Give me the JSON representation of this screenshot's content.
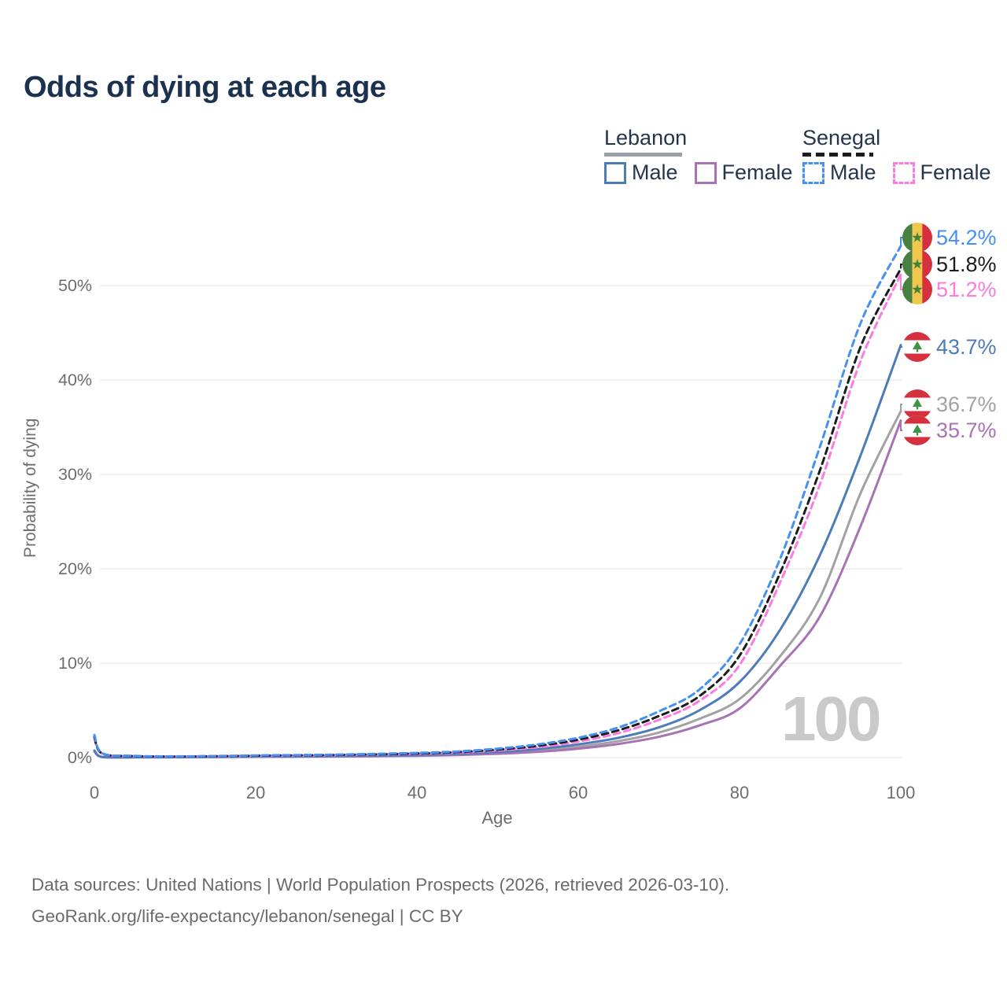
{
  "header": {
    "title": "Odds of dying at each age"
  },
  "legend": {
    "groups": [
      {
        "label": "Lebanon",
        "line_style": "solid",
        "items": [
          {
            "label": "Male"
          },
          {
            "label": "Female"
          }
        ]
      },
      {
        "label": "Senegal",
        "line_style": "dashed",
        "items": [
          {
            "label": "Male"
          },
          {
            "label": "Female"
          }
        ]
      }
    ]
  },
  "colors": {
    "senegal_male": "#4690f2",
    "senegal_both": "#1c1c1c",
    "senegal_female": "#fb7be0",
    "lebanon_male": "#4d7cba",
    "lebanon_both": "#a2a2a2",
    "lebanon_female": "#a873b4",
    "grid": "#ebebeb",
    "title": "#1b3150",
    "axis_text": "#6e6e6e",
    "watermark": "#c9c9c9",
    "flag_senegal_green": "#47803f",
    "flag_senegal_yellow": "#f0c84b",
    "flag_senegal_red": "#d5303e",
    "flag_lebanon_red": "#d5303e",
    "flag_lebanon_cedar": "#3f9444"
  },
  "chart_data": {
    "type": "line",
    "title": "Odds of dying at each age",
    "xlabel": "Age",
    "ylabel": "Probability of dying",
    "xlim": [
      0,
      100
    ],
    "ylim_percent": [
      0,
      57
    ],
    "grid": "horizontal-only",
    "legend_position": "top-right",
    "x_ticks": [
      0,
      20,
      40,
      60,
      80,
      100
    ],
    "x_tick_labels": [
      "0",
      "20",
      "40",
      "60",
      "80",
      "100"
    ],
    "y_ticks_percent": [
      0,
      10,
      20,
      30,
      40,
      50
    ],
    "y_tick_labels": [
      "0%",
      "10%",
      "20%",
      "30%",
      "40%",
      "50%"
    ],
    "hover_age_indicator": "100",
    "ages": [
      0,
      1,
      5,
      10,
      15,
      20,
      25,
      30,
      35,
      40,
      45,
      50,
      55,
      60,
      65,
      70,
      75,
      80,
      85,
      90,
      95,
      100
    ],
    "series": [
      {
        "key": "lebanon_both",
        "name": "Lebanon Both sexes",
        "style": "solid",
        "color": "#a2a2a2",
        "values_percent": [
          0.7,
          0.055,
          0.035,
          0.04,
          0.07,
          0.1,
          0.12,
          0.14,
          0.17,
          0.23,
          0.33,
          0.5,
          0.76,
          1.15,
          1.75,
          2.65,
          4.1,
          6.2,
          10.7,
          17.0,
          28.0,
          36.7
        ]
      },
      {
        "key": "lebanon_female",
        "name": "Lebanon Female",
        "style": "solid",
        "color": "#a873b4",
        "values_percent": [
          0.65,
          0.05,
          0.03,
          0.035,
          0.06,
          0.08,
          0.1,
          0.12,
          0.15,
          0.19,
          0.27,
          0.41,
          0.62,
          0.95,
          1.45,
          2.2,
          3.4,
          5.2,
          9.7,
          15.0,
          24.5,
          35.7
        ]
      },
      {
        "key": "lebanon_male",
        "name": "Lebanon Male",
        "style": "solid",
        "color": "#4d7cba",
        "values_percent": [
          0.75,
          0.06,
          0.04,
          0.05,
          0.08,
          0.12,
          0.14,
          0.17,
          0.21,
          0.28,
          0.4,
          0.6,
          0.92,
          1.4,
          2.1,
          3.2,
          5.0,
          8.0,
          13.5,
          21.5,
          32.0,
          43.7
        ]
      },
      {
        "key": "senegal_female",
        "name": "Senegal Female",
        "style": "dashed",
        "color": "#fb7be0",
        "values_percent": [
          2.0,
          0.38,
          0.15,
          0.11,
          0.13,
          0.17,
          0.21,
          0.25,
          0.31,
          0.39,
          0.52,
          0.75,
          1.1,
          1.7,
          2.6,
          4.0,
          6.0,
          9.8,
          18.5,
          29.0,
          42.0,
          51.2
        ]
      },
      {
        "key": "senegal_both",
        "name": "Senegal Both sexes",
        "style": "dashed",
        "color": "#1c1c1c",
        "values_percent": [
          2.2,
          0.42,
          0.16,
          0.12,
          0.15,
          0.2,
          0.24,
          0.28,
          0.35,
          0.44,
          0.58,
          0.85,
          1.25,
          1.9,
          2.9,
          4.4,
          6.5,
          10.8,
          19.5,
          30.5,
          43.5,
          51.8
        ]
      },
      {
        "key": "senegal_male",
        "name": "Senegal Male",
        "style": "dashed",
        "color": "#4690f2",
        "values_percent": [
          2.4,
          0.45,
          0.18,
          0.13,
          0.17,
          0.23,
          0.27,
          0.32,
          0.4,
          0.5,
          0.65,
          0.95,
          1.4,
          2.1,
          3.2,
          4.9,
          7.2,
          12.0,
          21.0,
          33.0,
          46.0,
          54.2
        ]
      }
    ]
  },
  "end_labels": [
    {
      "series": "senegal_male",
      "value": "54.2%",
      "flag": "senegal",
      "color": "#4690f2"
    },
    {
      "series": "senegal_both",
      "value": "51.8%",
      "flag": "senegal",
      "color": "#1c1c1c"
    },
    {
      "series": "senegal_female",
      "value": "51.2%",
      "flag": "senegal",
      "color": "#fb7be0"
    },
    {
      "series": "lebanon_male",
      "value": "43.7%",
      "flag": "lebanon",
      "color": "#4d7cba"
    },
    {
      "series": "lebanon_both",
      "value": "36.7%",
      "flag": "lebanon",
      "color": "#a2a2a2"
    },
    {
      "series": "lebanon_female",
      "value": "35.7%",
      "flag": "lebanon",
      "color": "#a873b4"
    }
  ],
  "axes": {
    "y_label": "Probability of dying",
    "x_label": "Age"
  },
  "watermark": "100",
  "source": {
    "line1": "Data sources: United Nations | World Population Prospects (2026, retrieved 2026-03-10).",
    "line2": "GeoRank.org/life-expectancy/lebanon/senegal | CC BY"
  }
}
